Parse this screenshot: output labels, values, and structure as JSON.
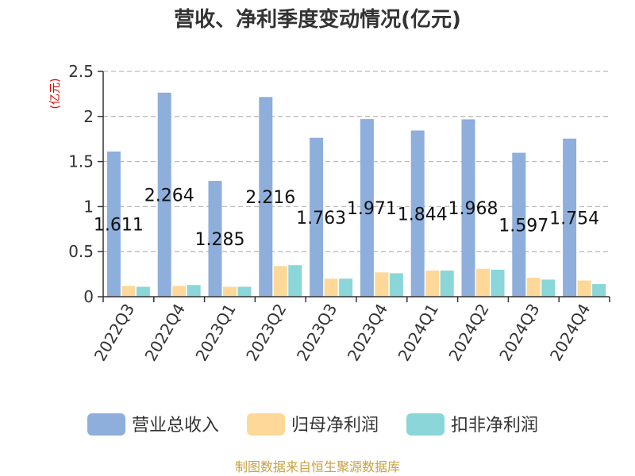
{
  "chart_data": {
    "type": "bar",
    "title": "营收、净利季度变动情况(亿元)",
    "ylabel": "(亿元)",
    "ylim": [
      0,
      2.5
    ],
    "yticks": [
      "0",
      "0.5",
      "1",
      "1.5",
      "2",
      "2.5"
    ],
    "ytick_values": [
      0,
      0.5,
      1,
      1.5,
      2,
      2.5
    ],
    "grid": "horizontal-dashed",
    "legend_position": "bottom",
    "categories": [
      "2022Q3",
      "2022Q4",
      "2023Q1",
      "2023Q2",
      "2023Q3",
      "2023Q4",
      "2024Q1",
      "2024Q2",
      "2024Q3",
      "2024Q4"
    ],
    "series": [
      {
        "name": "营业总收入",
        "color": "#8eaedb",
        "values": [
          1.611,
          2.264,
          1.285,
          2.216,
          1.763,
          1.971,
          1.844,
          1.968,
          1.597,
          1.754
        ],
        "labels": [
          "1.611",
          "2.264",
          "1.285",
          "2.216",
          "1.763",
          "1.971",
          "1.844",
          "1.968",
          "1.597",
          "1.754"
        ]
      },
      {
        "name": "归母净利润",
        "color": "#fdd898",
        "values": [
          0.12,
          0.12,
          0.11,
          0.34,
          0.2,
          0.27,
          0.29,
          0.31,
          0.21,
          0.18
        ]
      },
      {
        "name": "扣非净利润",
        "color": "#8ad6d8",
        "values": [
          0.11,
          0.13,
          0.11,
          0.35,
          0.2,
          0.26,
          0.29,
          0.3,
          0.19,
          0.14
        ]
      }
    ],
    "source": "制图数据来自恒生聚源数据库"
  }
}
